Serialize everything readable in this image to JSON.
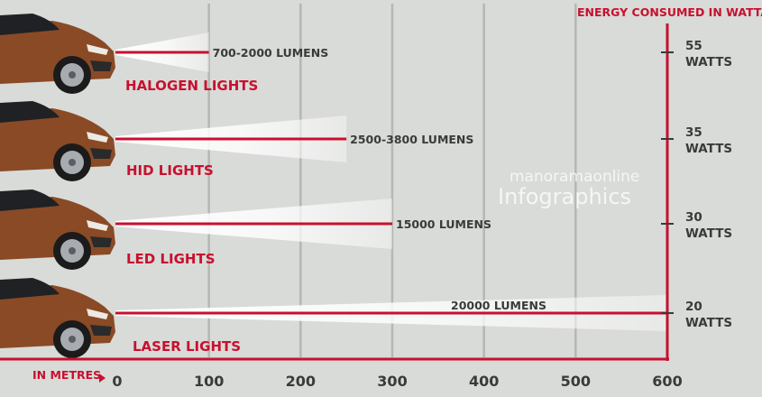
{
  "chart_data": {
    "type": "bar",
    "xlabel": "IN METRES",
    "xlim": [
      0,
      600
    ],
    "x_ticks": [
      "0",
      "100",
      "200",
      "300",
      "400",
      "500",
      "600"
    ],
    "right_axis_label": "ENERGY CONSUMED IN WATTAGE",
    "grid": true,
    "categories": [
      "HALOGEN LIGHTS",
      "HID LIGHTS",
      "LED LIGHTS",
      "LASER LIGHTS"
    ],
    "series": [
      {
        "values": [
          100,
          250,
          300,
          600
        ]
      }
    ],
    "lumens_labels": [
      "700-2000 LUMENS",
      "2500-3800 LUMENS",
      "15000 LUMENS",
      "20000 LUMENS"
    ],
    "wattage": [
      {
        "value": "55",
        "unit": "WATTS"
      },
      {
        "value": "35",
        "unit": "WATTS"
      },
      {
        "value": "30",
        "unit": "WATTS"
      },
      {
        "value": "20",
        "unit": "WATTS"
      }
    ],
    "watermark": {
      "line1": "manoramaonline",
      "line2": "Infographics"
    },
    "colors": {
      "accent": "#c8102e",
      "background": "#d9dbd8",
      "grid": "#b5b7b4",
      "text": "#3a3a3a",
      "car": "#8a4a26"
    }
  }
}
